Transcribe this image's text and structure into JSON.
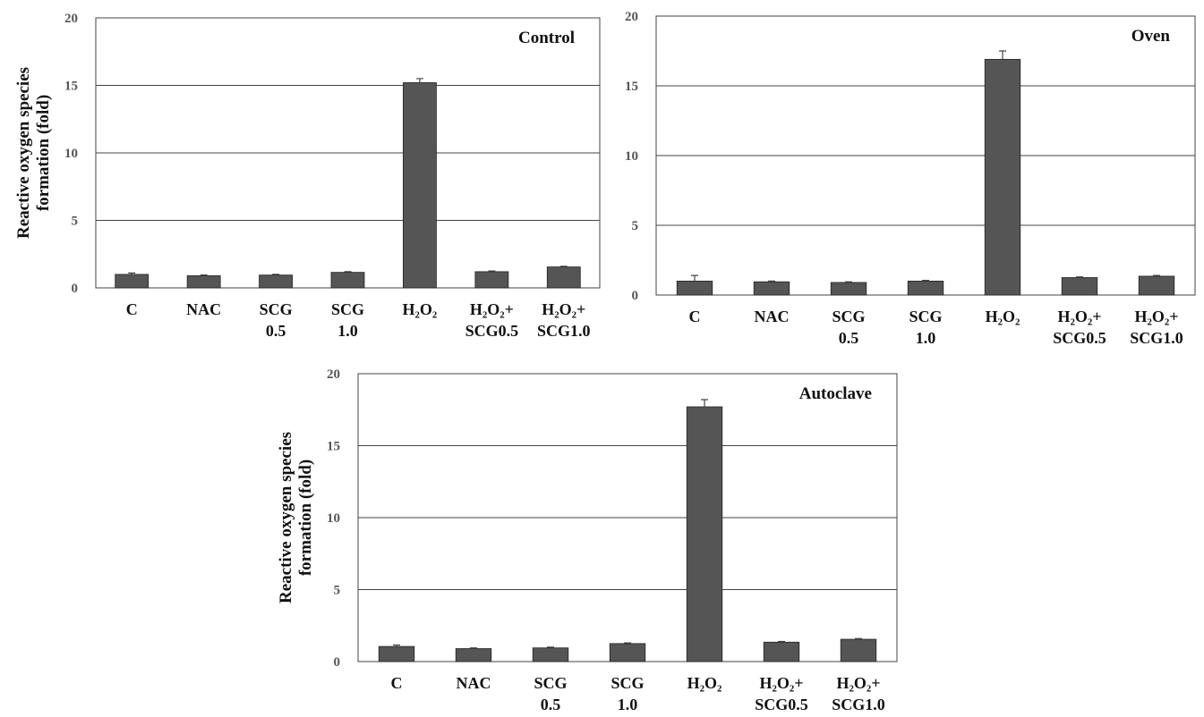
{
  "chart_data": [
    {
      "type": "bar",
      "title": "Control",
      "ylabel": "Reactive oxygen species formation (fold)",
      "categories": [
        "C",
        "NAC",
        "SCG\n0.5",
        "SCG\n1.0",
        "H₂O₂",
        "H₂O₂+\nSCG0.5",
        "H₂O₂+\nSCG1.0"
      ],
      "values": [
        1.0,
        0.9,
        0.95,
        1.15,
        15.2,
        1.2,
        1.55
      ],
      "errors": [
        0.1,
        0.05,
        0.05,
        0.05,
        0.3,
        0.05,
        0.05
      ],
      "color": "#555555",
      "ylim": [
        0,
        20
      ],
      "yticks": [
        0,
        5,
        10,
        15,
        20
      ],
      "grid": true
    },
    {
      "type": "bar",
      "title": "Oven",
      "categories": [
        "C",
        "NAC",
        "SCG\n0.5",
        "SCG\n1.0",
        "H₂O₂",
        "H₂O₂+\nSCG0.5",
        "H₂O₂+\nSCG1.0"
      ],
      "values": [
        1.0,
        0.95,
        0.9,
        1.0,
        16.9,
        1.25,
        1.35
      ],
      "errors": [
        0.4,
        0.05,
        0.05,
        0.05,
        0.6,
        0.05,
        0.05
      ],
      "color": "#555555",
      "ylim": [
        0,
        20
      ],
      "yticks": [
        0,
        5,
        10,
        15,
        20
      ],
      "grid": true
    },
    {
      "type": "bar",
      "title": "Autoclave",
      "ylabel": "Reactive oxygen species formation (fold)",
      "categories": [
        "C",
        "NAC",
        "SCG\n0.5",
        "SCG\n1.0",
        "H₂O₂",
        "H₂O₂+\nSCG0.5",
        "H₂O₂+\nSCG1.0"
      ],
      "values": [
        1.05,
        0.9,
        0.95,
        1.25,
        17.7,
        1.35,
        1.55
      ],
      "errors": [
        0.1,
        0.05,
        0.05,
        0.05,
        0.5,
        0.05,
        0.05
      ],
      "color": "#555555",
      "ylim": [
        0,
        20
      ],
      "yticks": [
        0,
        5,
        10,
        15,
        20
      ],
      "grid": true
    }
  ]
}
